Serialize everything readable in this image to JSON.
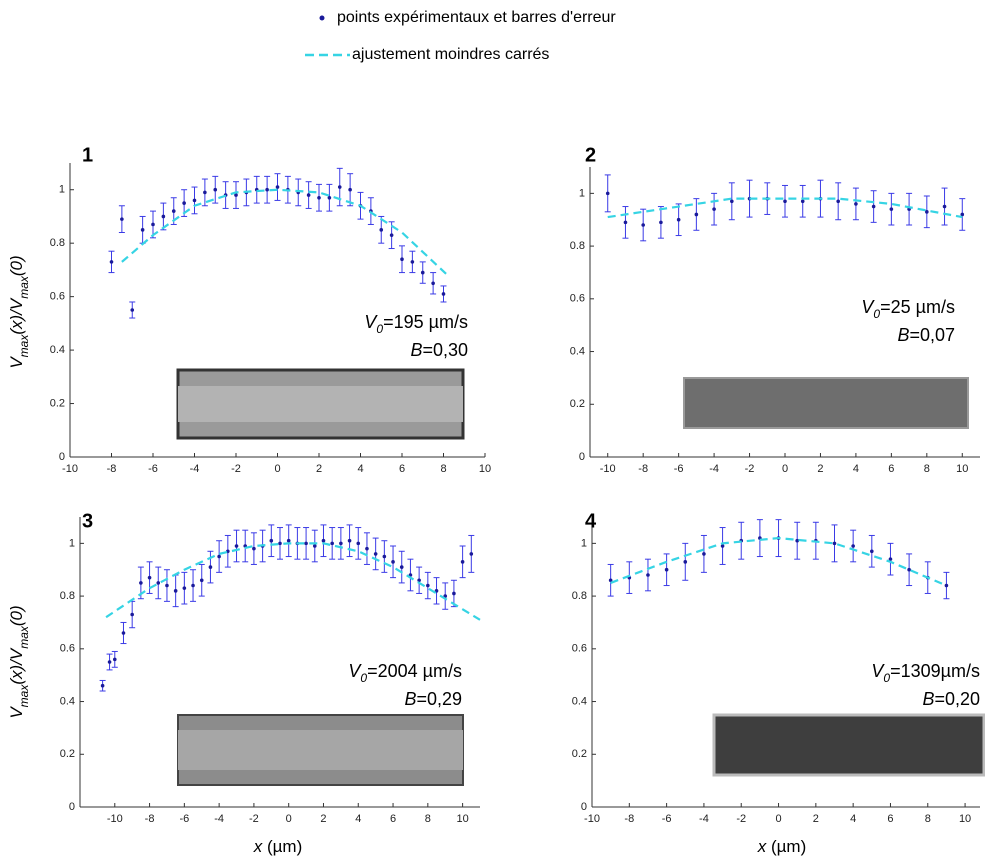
{
  "legend": [
    {
      "name": "points expérimentaux et barres d'erreur",
      "color": "#1a1a9a",
      "style": "point"
    },
    {
      "name": "ajustement moindres carrés",
      "color": "#36d4e4",
      "style": "dash"
    }
  ],
  "chart_data": [
    {
      "type": "scatter",
      "label": "1",
      "xlim": [
        -10,
        10
      ],
      "ylim": [
        0,
        1.1
      ],
      "xticks": [
        -10,
        -8,
        -6,
        -4,
        -2,
        0,
        2,
        4,
        6,
        8,
        10
      ],
      "yticks": [
        0,
        0.2,
        0.4,
        0.6,
        0.8,
        1
      ],
      "ylabel": [
        "V",
        "max",
        "(x)/V",
        "max",
        "(0)"
      ],
      "annotations": [
        {
          "var": "V",
          "sub": "0",
          "text": "=195 µm/s"
        },
        {
          "var": "B",
          "text": "=0,30"
        }
      ],
      "series": [
        {
          "type": "errorbar",
          "color": "#1a1a9a",
          "ecolor": "#3a3ae6",
          "x": [
            -8,
            -7.5,
            -7,
            -6.5,
            -6,
            -5.5,
            -5,
            -4.5,
            -4,
            -3.5,
            -3,
            -2.5,
            -2,
            -1.5,
            -1,
            -0.5,
            0,
            0.5,
            1,
            1.5,
            2,
            2.5,
            3,
            3.5,
            4,
            4.5,
            5,
            5.5,
            6,
            6.5,
            7,
            7.5,
            8
          ],
          "values": [
            0.73,
            0.89,
            0.55,
            0.85,
            0.87,
            0.9,
            0.92,
            0.95,
            0.96,
            0.99,
            1.0,
            0.98,
            0.98,
            0.99,
            1.0,
            1.0,
            1.01,
            1.0,
            0.99,
            0.98,
            0.97,
            0.97,
            1.01,
            1.0,
            0.94,
            0.92,
            0.85,
            0.83,
            0.74,
            0.73,
            0.69,
            0.65,
            0.61
          ],
          "errors": [
            0.04,
            0.05,
            0.03,
            0.05,
            0.05,
            0.05,
            0.05,
            0.05,
            0.05,
            0.05,
            0.05,
            0.05,
            0.05,
            0.05,
            0.05,
            0.05,
            0.05,
            0.05,
            0.05,
            0.05,
            0.05,
            0.05,
            0.07,
            0.06,
            0.05,
            0.05,
            0.05,
            0.05,
            0.05,
            0.04,
            0.04,
            0.04,
            0.03
          ]
        },
        {
          "type": "line",
          "color": "#36d4e4",
          "dash": true,
          "x": [
            -7.5,
            -6,
            -4,
            -2,
            0,
            2,
            4,
            6,
            8.2
          ],
          "values": [
            0.73,
            0.83,
            0.94,
            0.99,
            1.0,
            0.99,
            0.94,
            0.84,
            0.68
          ]
        }
      ]
    },
    {
      "type": "scatter",
      "label": "2",
      "xlim": [
        -11,
        11
      ],
      "ylim": [
        0,
        1.1
      ],
      "xticks": [
        -10,
        -8,
        -6,
        -4,
        -2,
        0,
        2,
        4,
        6,
        8,
        10
      ],
      "yticks": [
        0,
        0.2,
        0.4,
        0.6,
        0.8,
        1
      ],
      "annotations": [
        {
          "var": "V",
          "sub": "0",
          "text": "=25 µm/s"
        },
        {
          "var": "B",
          "text": "=0,07"
        }
      ],
      "series": [
        {
          "type": "errorbar",
          "color": "#1a1a9a",
          "ecolor": "#3a3ae6",
          "x": [
            -10,
            -9,
            -8,
            -7,
            -6,
            -5,
            -4,
            -3,
            -2,
            -1,
            0,
            1,
            2,
            3,
            4,
            5,
            6,
            7,
            8,
            9,
            10
          ],
          "values": [
            1.0,
            0.89,
            0.88,
            0.89,
            0.9,
            0.92,
            0.94,
            0.97,
            0.98,
            0.98,
            0.97,
            0.97,
            0.98,
            0.97,
            0.96,
            0.95,
            0.94,
            0.94,
            0.93,
            0.95,
            0.92
          ],
          "errors": [
            0.07,
            0.06,
            0.06,
            0.06,
            0.06,
            0.06,
            0.06,
            0.07,
            0.07,
            0.06,
            0.06,
            0.06,
            0.07,
            0.07,
            0.06,
            0.06,
            0.06,
            0.06,
            0.06,
            0.07,
            0.06
          ]
        },
        {
          "type": "line",
          "color": "#36d4e4",
          "dash": true,
          "x": [
            -10,
            -6,
            -3,
            0,
            3,
            6,
            10
          ],
          "values": [
            0.91,
            0.95,
            0.98,
            0.98,
            0.98,
            0.96,
            0.91
          ]
        }
      ]
    },
    {
      "type": "scatter",
      "label": "3",
      "xlim": [
        -12,
        11
      ],
      "ylim": [
        0,
        1.1
      ],
      "xticks": [
        -10,
        -8,
        -6,
        -4,
        -2,
        0,
        2,
        4,
        6,
        8,
        10
      ],
      "yticks": [
        0,
        0.2,
        0.4,
        0.6,
        0.8,
        1
      ],
      "ylabel": [
        "V",
        "max",
        "(x)/V",
        "max",
        "(0)"
      ],
      "xlabel": [
        "x",
        " (µm)"
      ],
      "annotations": [
        {
          "var": "V",
          "sub": "0",
          "text": "=2004 µm/s"
        },
        {
          "var": "B",
          "text": "=0,29"
        }
      ],
      "series": [
        {
          "type": "errorbar",
          "color": "#1a1a9a",
          "ecolor": "#3a3ae6",
          "x": [
            -10.7,
            -10.3,
            -10,
            -9.5,
            -9,
            -8.5,
            -8,
            -7.5,
            -7,
            -6.5,
            -6,
            -5.5,
            -5,
            -4.5,
            -4,
            -3.5,
            -3,
            -2.5,
            -2,
            -1.5,
            -1,
            -0.5,
            0,
            0.5,
            1,
            1.5,
            2,
            2.5,
            3,
            3.5,
            4,
            4.5,
            5,
            5.5,
            6,
            6.5,
            7,
            7.5,
            8,
            8.5,
            9,
            9.5,
            10,
            10.5
          ],
          "values": [
            0.46,
            0.55,
            0.56,
            0.66,
            0.73,
            0.85,
            0.87,
            0.85,
            0.84,
            0.82,
            0.83,
            0.84,
            0.86,
            0.91,
            0.95,
            0.97,
            0.99,
            0.99,
            0.98,
            0.99,
            1.01,
            1.0,
            1.01,
            1.0,
            1.0,
            0.99,
            1.01,
            1.0,
            1.0,
            1.01,
            1.0,
            0.98,
            0.96,
            0.95,
            0.93,
            0.91,
            0.88,
            0.86,
            0.84,
            0.82,
            0.8,
            0.81,
            0.93,
            0.96
          ],
          "errors": [
            0.02,
            0.03,
            0.03,
            0.04,
            0.05,
            0.06,
            0.06,
            0.06,
            0.06,
            0.06,
            0.06,
            0.06,
            0.06,
            0.06,
            0.06,
            0.06,
            0.06,
            0.06,
            0.06,
            0.06,
            0.06,
            0.06,
            0.06,
            0.06,
            0.06,
            0.06,
            0.06,
            0.06,
            0.06,
            0.06,
            0.06,
            0.06,
            0.06,
            0.06,
            0.06,
            0.06,
            0.06,
            0.05,
            0.05,
            0.05,
            0.05,
            0.05,
            0.06,
            0.07
          ]
        },
        {
          "type": "line",
          "color": "#36d4e4",
          "dash": true,
          "x": [
            -10.5,
            -8,
            -6,
            -4,
            -2,
            0,
            2,
            4,
            6,
            8,
            11
          ],
          "values": [
            0.72,
            0.83,
            0.9,
            0.96,
            0.99,
            1.0,
            1.0,
            0.97,
            0.91,
            0.83,
            0.71
          ]
        }
      ]
    },
    {
      "type": "scatter",
      "label": "4",
      "xlim": [
        -10,
        10.8
      ],
      "ylim": [
        0,
        1.1
      ],
      "xticks": [
        -10,
        -8,
        -6,
        -4,
        -2,
        0,
        2,
        4,
        6,
        8,
        10
      ],
      "yticks": [
        0,
        0.2,
        0.4,
        0.6,
        0.8,
        1
      ],
      "xlabel": [
        "x",
        " (µm)"
      ],
      "annotations": [
        {
          "var": "V",
          "sub": "0",
          "text": "=1309µm/s"
        },
        {
          "var": "B",
          "text": "=0,20"
        }
      ],
      "series": [
        {
          "type": "errorbar",
          "color": "#1a1a9a",
          "ecolor": "#3a3ae6",
          "x": [
            -9,
            -8,
            -7,
            -6,
            -5,
            -4,
            -3,
            -2,
            -1,
            0,
            1,
            2,
            3,
            4,
            5,
            6,
            7,
            8,
            9
          ],
          "values": [
            0.86,
            0.87,
            0.88,
            0.9,
            0.93,
            0.96,
            0.99,
            1.01,
            1.02,
            1.02,
            1.01,
            1.01,
            1.0,
            0.99,
            0.97,
            0.94,
            0.9,
            0.87,
            0.84
          ],
          "errors": [
            0.06,
            0.06,
            0.06,
            0.06,
            0.07,
            0.07,
            0.07,
            0.07,
            0.07,
            0.07,
            0.07,
            0.07,
            0.07,
            0.06,
            0.06,
            0.06,
            0.06,
            0.06,
            0.05
          ]
        },
        {
          "type": "line",
          "color": "#36d4e4",
          "dash": true,
          "x": [
            -9,
            -6,
            -3,
            0,
            3,
            6,
            9
          ],
          "values": [
            0.85,
            0.93,
            1.0,
            1.02,
            1.0,
            0.93,
            0.84
          ]
        }
      ]
    }
  ]
}
